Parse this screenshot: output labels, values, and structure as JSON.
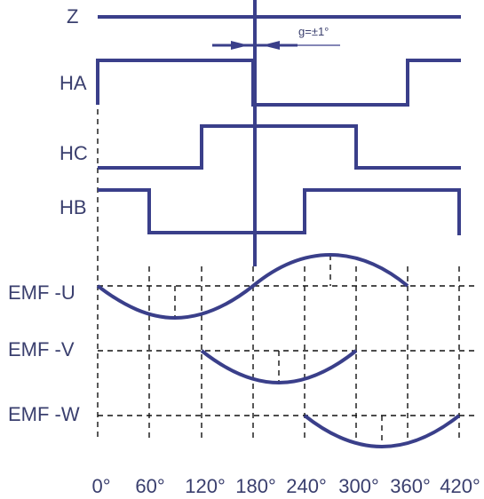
{
  "colors": {
    "signal": "#3a3f8a",
    "grid": "#111111",
    "text": "#3a3f6e"
  },
  "labels": {
    "z": "Z",
    "ha": "HA",
    "hc": "HC",
    "hb": "HB",
    "emf_u": "EMF -U",
    "emf_v": "EMF -V",
    "emf_w": "EMF -W",
    "tolerance": "g=±1°"
  },
  "angles": [
    "0°",
    "60°",
    "120°",
    "180°",
    "240°",
    "300°",
    "360°",
    "420°"
  ],
  "hall_states": {
    "HA": [
      {
        "from": 0,
        "to": 180,
        "level": "high"
      },
      {
        "from": 180,
        "to": 360,
        "level": "low"
      },
      {
        "from": 360,
        "to": 420,
        "level": "high"
      }
    ],
    "HC": [
      {
        "from": 0,
        "to": 120,
        "level": "low"
      },
      {
        "from": 120,
        "to": 300,
        "level": "high"
      },
      {
        "from": 300,
        "to": 420,
        "level": "low"
      }
    ],
    "HB": [
      {
        "from": 0,
        "to": 60,
        "level": "high"
      },
      {
        "from": 60,
        "to": 240,
        "level": "low"
      },
      {
        "from": 240,
        "to": 420,
        "level": "high"
      }
    ]
  },
  "emf_phases": {
    "EMF-U": {
      "zero_crossings": [
        0,
        180,
        360
      ],
      "negative_peak": 90,
      "positive_peak": 270
    },
    "EMF-V": {
      "zero_crossings": [
        120,
        300
      ],
      "negative_peak": 210
    },
    "EMF-W": {
      "zero_crossings": [
        240,
        420
      ],
      "negative_peak": 330
    }
  }
}
